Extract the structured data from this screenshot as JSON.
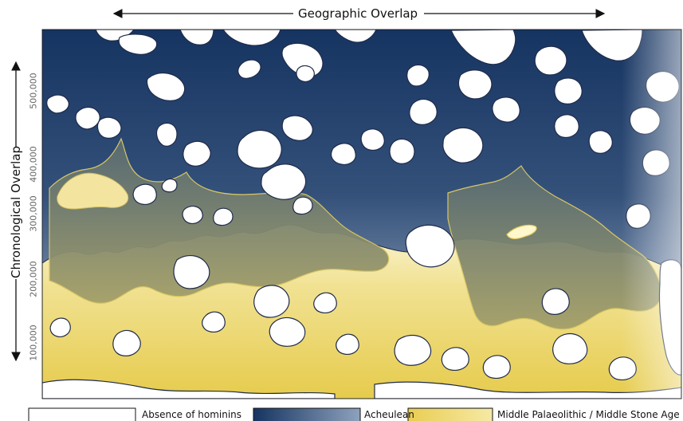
{
  "top_axis": {
    "label": "Geographic Overlap"
  },
  "left_axis": {
    "label": "Chronological Overlap",
    "ticks": [
      "500,000",
      "400,000",
      "300,000",
      "200,000",
      "100,000"
    ]
  },
  "legend": [
    {
      "label": "Absence of hominins",
      "fill": "#ffffff"
    },
    {
      "label": "Acheulean",
      "fill": "#1d3b66"
    },
    {
      "label": "Middle Palaeolithic / Middle Stone Age",
      "fill": "#e8cf55"
    }
  ],
  "colors": {
    "acheulean_dark": "#163461",
    "acheulean_light": "#7c93b1",
    "mp_msa_light": "#fbf5d2",
    "mp_msa": "#ead164",
    "overlap_zone": "#8f9470",
    "outline": "#1f2b4a"
  }
}
